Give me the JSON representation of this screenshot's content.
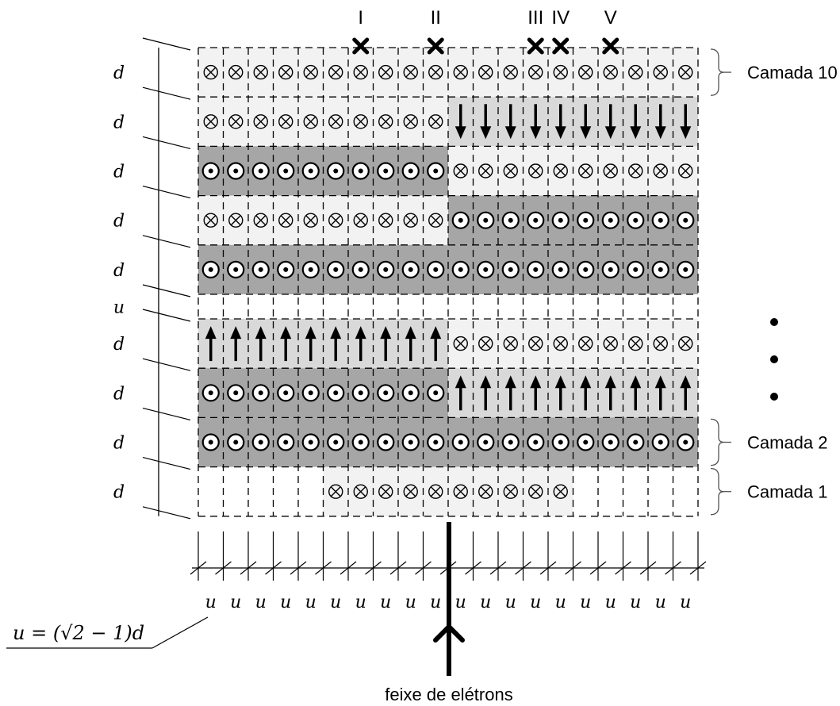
{
  "title": "",
  "columns": 20,
  "rows": [
    {
      "label": "d",
      "left": {
        "symbol": "into",
        "shade": "light",
        "span": [
          0,
          9
        ]
      },
      "right": {
        "symbol": "into",
        "shade": "light",
        "span": [
          10,
          19
        ]
      }
    },
    {
      "label": "d",
      "left": {
        "symbol": "into",
        "shade": "light",
        "span": [
          0,
          9
        ]
      },
      "right": {
        "symbol": "down",
        "shade": "mid",
        "span": [
          10,
          19
        ]
      }
    },
    {
      "label": "d",
      "left": {
        "symbol": "out",
        "shade": "dark",
        "span": [
          0,
          9
        ]
      },
      "right": {
        "symbol": "into",
        "shade": "light",
        "span": [
          10,
          19
        ]
      }
    },
    {
      "label": "d",
      "left": {
        "symbol": "into",
        "shade": "light",
        "span": [
          0,
          9
        ]
      },
      "right": {
        "symbol": "out",
        "shade": "dark",
        "span": [
          10,
          19
        ]
      }
    },
    {
      "label": "d",
      "left": {
        "symbol": "out",
        "shade": "dark",
        "span": [
          0,
          9
        ]
      },
      "right": {
        "symbol": "out",
        "shade": "dark",
        "span": [
          10,
          19
        ]
      }
    },
    {
      "label": "u",
      "gap": true
    },
    {
      "label": "d",
      "left": {
        "symbol": "up",
        "shade": "mid",
        "span": [
          0,
          9
        ]
      },
      "right": {
        "symbol": "into",
        "shade": "light",
        "span": [
          10,
          19
        ]
      }
    },
    {
      "label": "d",
      "left": {
        "symbol": "out",
        "shade": "dark",
        "span": [
          0,
          9
        ]
      },
      "right": {
        "symbol": "up",
        "shade": "mid",
        "span": [
          10,
          19
        ]
      }
    },
    {
      "label": "d",
      "left": {
        "symbol": "out",
        "shade": "dark",
        "span": [
          0,
          9
        ]
      },
      "right": {
        "symbol": "out",
        "shade": "dark",
        "span": [
          10,
          19
        ]
      }
    },
    {
      "label": "d",
      "left": {
        "symbol": "into",
        "shade": "light",
        "span": [
          5,
          14
        ]
      }
    }
  ],
  "layer_labels": [
    {
      "text": "Camada 10",
      "row": 0
    },
    {
      "text": "Camada 2",
      "row": 8
    },
    {
      "text": "Camada 1",
      "row": 9
    }
  ],
  "markers": [
    {
      "label": "I",
      "column": 6
    },
    {
      "label": "II",
      "column": 9
    },
    {
      "label": "III",
      "column": 13
    },
    {
      "label": "IV",
      "column": 14
    },
    {
      "label": "V",
      "column": 16
    }
  ],
  "column_unit": "u",
  "formula": "u = (√2 − 1)d",
  "beam_label": "feixe de elétrons",
  "colors": {
    "light": "#f2f2f2",
    "mid": "#d9d9d9",
    "dark": "#a6a6a6",
    "line": "#000000"
  }
}
